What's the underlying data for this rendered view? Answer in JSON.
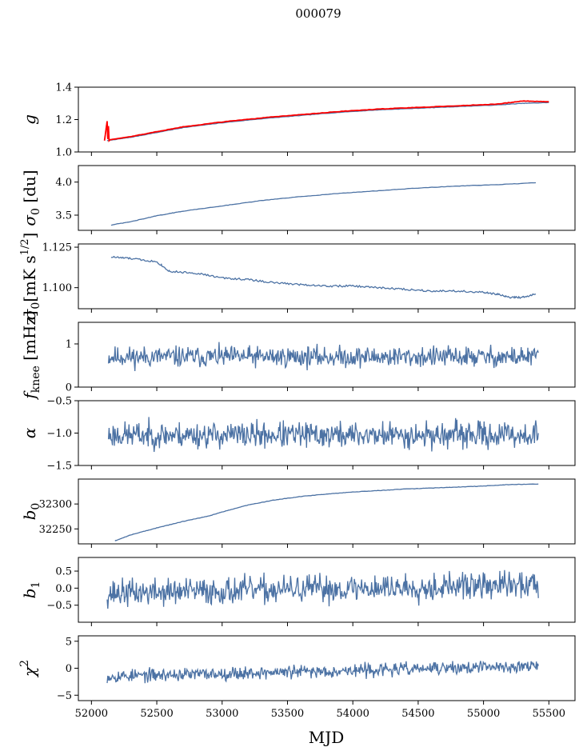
{
  "figure": {
    "title": "000079",
    "xlabel": "MJD"
  },
  "colors": {
    "series": "#4c72a4",
    "fit": "#ff0000"
  },
  "chart_data": {
    "type": "line",
    "shared_x": {
      "label": "MJD",
      "lim": [
        51900,
        55700
      ],
      "ticks": [
        52000,
        52500,
        53000,
        53500,
        54000,
        54500,
        55000,
        55500
      ],
      "data_range": [
        52120,
        55420
      ]
    },
    "panels": [
      {
        "id": "g",
        "ylabel": "g",
        "ylim": [
          1.0,
          1.4
        ],
        "yticks": [
          1.0,
          1.2,
          1.4
        ],
        "ytick_labels": [
          "1.0",
          "1.2",
          "1.4"
        ],
        "series": [
          {
            "color": "#4c72a4",
            "x": [
              52120,
              52300,
              52500,
              52700,
              53000,
              53300,
              53600,
              53900,
              54200,
              54500,
              54800,
              55100,
              55300,
              55500
            ],
            "y": [
              1.07,
              1.09,
              1.12,
              1.15,
              1.18,
              1.205,
              1.225,
              1.245,
              1.26,
              1.27,
              1.28,
              1.29,
              1.3,
              1.305
            ]
          },
          {
            "color": "#ff0000",
            "x": [
              52100,
              52120,
              52125,
              52130,
              52135,
              52140,
              52300,
              52500,
              52700,
              53000,
              53300,
              53600,
              53900,
              54200,
              54500,
              54800,
              55100,
              55300,
              55500
            ],
            "y": [
              1.07,
              1.19,
              1.08,
              1.16,
              1.07,
              1.075,
              1.095,
              1.125,
              1.155,
              1.185,
              1.21,
              1.23,
              1.25,
              1.265,
              1.275,
              1.285,
              1.295,
              1.315,
              1.31
            ]
          }
        ]
      },
      {
        "id": "sigma0_du",
        "ylabel": "σ0 [du]",
        "ylim": [
          3.27,
          4.25
        ],
        "yticks": [
          3.5,
          4.0
        ],
        "ytick_labels": [
          "3.5",
          "4.0"
        ],
        "series": [
          {
            "color": "#4c72a4",
            "x": [
              52150,
              52300,
              52500,
              52700,
              53000,
              53300,
              53600,
              53900,
              54200,
              54500,
              54800,
              55100,
              55400
            ],
            "y": [
              3.35,
              3.4,
              3.49,
              3.56,
              3.64,
              3.72,
              3.78,
              3.83,
              3.87,
              3.91,
              3.94,
              3.96,
              3.99
            ]
          }
        ]
      },
      {
        "id": "sigma0_mK",
        "ylabel": "σ0[mK s1/2]",
        "ylim": [
          1.087,
          1.127
        ],
        "yticks": [
          1.1,
          1.125
        ],
        "ytick_labels": [
          "1.100",
          "1.125"
        ],
        "series": [
          {
            "color": "#4c72a4",
            "x": [
              52150,
              52300,
              52500,
              52600,
              52800,
              53000,
              53200,
              53400,
              53600,
              53800,
              54000,
              54200,
              54400,
              54600,
              54800,
              55000,
              55100,
              55200,
              55300,
              55400
            ],
            "y": [
              1.119,
              1.118,
              1.116,
              1.11,
              1.109,
              1.106,
              1.105,
              1.103,
              1.102,
              1.101,
              1.101,
              1.1,
              1.099,
              1.098,
              1.098,
              1.097,
              1.096,
              1.094,
              1.094,
              1.096
            ]
          }
        ]
      },
      {
        "id": "fknee",
        "ylabel": "fknee [mHz]",
        "ylim": [
          0,
          1.5
        ],
        "yticks": [
          0,
          1
        ],
        "ytick_labels": [
          "0",
          "1"
        ],
        "noise": {
          "mean": 0.7,
          "amp": 0.12,
          "seed": 11
        },
        "series": [
          {
            "color": "#4c72a4",
            "x_range": [
              52130,
              55420
            ],
            "n": 650
          }
        ]
      },
      {
        "id": "alpha",
        "ylabel": "α",
        "ylim": [
          -1.5,
          -0.5
        ],
        "yticks": [
          -1.5,
          -1.0,
          -0.5
        ],
        "ytick_labels": [
          "−1.5",
          "−1.0",
          "−0.5"
        ],
        "noise": {
          "mean": -1.03,
          "amp": 0.1,
          "seed": 23
        },
        "series": [
          {
            "color": "#4c72a4",
            "x_range": [
              52130,
              55420
            ],
            "n": 650
          }
        ]
      },
      {
        "id": "b0",
        "ylabel": "b0",
        "ylim": [
          32220,
          32350
        ],
        "yticks": [
          32250,
          32300
        ],
        "ytick_labels": [
          "32250",
          "32300"
        ],
        "series": [
          {
            "color": "#4c72a4",
            "x": [
              52180,
              52300,
              52500,
              52700,
              52900,
              53000,
              53200,
              53400,
              53600,
              53800,
              54000,
              54200,
              54400,
              54600,
              54800,
              55000,
              55200,
              55420
            ],
            "y": [
              32226,
              32238,
              32252,
              32265,
              32276,
              32284,
              32298,
              32308,
              32315,
              32320,
              32324,
              32327,
              32330,
              32332,
              32334,
              32336,
              32339,
              32340
            ]
          }
        ]
      },
      {
        "id": "b1",
        "ylabel": "b1",
        "ylim": [
          -1.0,
          0.9
        ],
        "yticks": [
          -0.5,
          0.0,
          0.5
        ],
        "ytick_labels": [
          "−0.5",
          "0.0",
          "0.5"
        ],
        "noise": {
          "mean": -0.15,
          "amp": 0.2,
          "seed": 37,
          "trend": 0.25
        },
        "series": [
          {
            "color": "#4c72a4",
            "x_range": [
              52120,
              55420
            ],
            "n": 650
          }
        ]
      },
      {
        "id": "chi2",
        "ylabel": "χ2",
        "ylim": [
          -6,
          6
        ],
        "yticks": [
          -5,
          0,
          5
        ],
        "ytick_labels": [
          "−5",
          "0",
          "5"
        ],
        "noise": {
          "mean": -1.5,
          "amp": 0.6,
          "seed": 53,
          "trend": 1.9
        },
        "series": [
          {
            "color": "#4c72a4",
            "x_range": [
              52120,
              55420
            ],
            "n": 650
          }
        ]
      }
    ]
  }
}
